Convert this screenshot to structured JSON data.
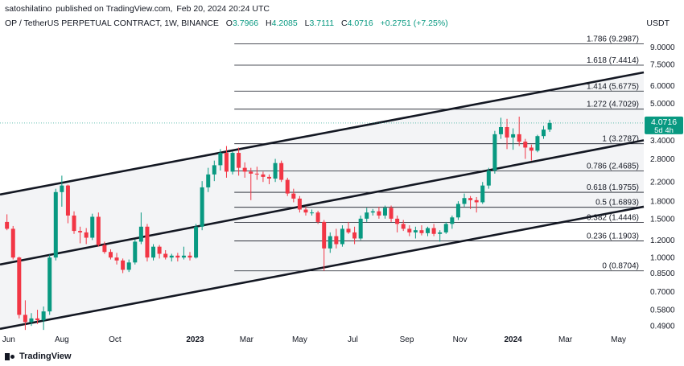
{
  "header": {
    "author": "satoshilatino",
    "published_text": "published on TradingView.com,",
    "date": "Feb 20, 2024 20:24 UTC",
    "symbol": "OP / TetherUS PERPETUAL CONTRACT, 1W, BINANCE",
    "open_label": "O",
    "open": "3.7966",
    "high_label": "H",
    "high": "4.2085",
    "low_label": "L",
    "low": "3.7111",
    "close_label": "C",
    "close": "4.0716",
    "change": "+0.2751 (+7.25%)",
    "unit": "USDT"
  },
  "logo": {
    "text": "TradingView"
  },
  "price_tag": {
    "price": "4.0716",
    "countdown": "5d 4h"
  },
  "colors": {
    "up": "#089981",
    "down": "#f23645",
    "channel": "#131722",
    "fib": "#131722",
    "channel_fill": "#f3f4f6",
    "tag": "#089981"
  },
  "chart_data": {
    "type": "candlestick",
    "y_scale": "log",
    "y_range": [
      0.44,
      10.5
    ],
    "y_ticks": [
      "9.0000",
      "7.5000",
      "6.0000",
      "5.0000",
      "4.0000",
      "3.4000",
      "2.8000",
      "2.2000",
      "1.8000",
      "1.5000",
      "1.2000",
      "1.0000",
      "0.8500",
      "0.7000",
      "0.5800",
      "0.4900"
    ],
    "x_range": [
      "2022-05-22",
      "2024-05-30"
    ],
    "x_ticks": [
      {
        "date": "2022-06-01",
        "label": "Jun"
      },
      {
        "date": "2022-08-01",
        "label": "Aug"
      },
      {
        "date": "2022-10-01",
        "label": "Oct"
      },
      {
        "date": "2023-01-01",
        "label": "2023"
      },
      {
        "date": "2023-03-01",
        "label": "Mar"
      },
      {
        "date": "2023-05-01",
        "label": "May"
      },
      {
        "date": "2023-07-01",
        "label": "Jul"
      },
      {
        "date": "2023-09-01",
        "label": "Sep"
      },
      {
        "date": "2023-11-01",
        "label": "Nov"
      },
      {
        "date": "2024-01-01",
        "label": "2024"
      },
      {
        "date": "2024-03-01",
        "label": "Mar"
      },
      {
        "date": "2024-05-01",
        "label": "May"
      }
    ],
    "fib_levels": [
      {
        "ratio": "1.786",
        "price": "9.2987",
        "value": 9.2987
      },
      {
        "ratio": "1.618",
        "price": "7.4414",
        "value": 7.4414
      },
      {
        "ratio": "1.414",
        "price": "5.6775",
        "value": 5.6775
      },
      {
        "ratio": "1.272",
        "price": "4.7029",
        "value": 4.7029
      },
      {
        "ratio": "1",
        "price": "3.2787",
        "value": 3.2787
      },
      {
        "ratio": "0.786",
        "price": "2.4685",
        "value": 2.4685
      },
      {
        "ratio": "0.618",
        "price": "1.9755",
        "value": 1.9755
      },
      {
        "ratio": "0.5",
        "price": "1.6893",
        "value": 1.6893
      },
      {
        "ratio": "0.382",
        "price": "1.4446",
        "value": 1.4446
      },
      {
        "ratio": "0.236",
        "price": "1.1903",
        "value": 1.1903
      },
      {
        "ratio": "0",
        "price": "0.8704",
        "value": 0.8704
      }
    ],
    "fib_start": "2023-02-15",
    "channel_lines": [
      {
        "name": "upper",
        "points": [
          [
            "2022-05-22",
            1.93
          ],
          [
            "2024-05-30",
            6.9
          ]
        ]
      },
      {
        "name": "middle",
        "points": [
          [
            "2022-05-22",
            0.93
          ],
          [
            "2024-05-30",
            3.4
          ]
        ]
      },
      {
        "name": "lower",
        "points": [
          [
            "2022-05-22",
            0.475
          ],
          [
            "2024-05-30",
            1.7
          ]
        ]
      }
    ],
    "candles": [
      {
        "t": "2022-05-30",
        "o": 1.45,
        "h": 1.57,
        "l": 1.33,
        "c": 1.35
      },
      {
        "t": "2022-06-06",
        "o": 1.35,
        "h": 1.39,
        "l": 0.98,
        "c": 1.0
      },
      {
        "t": "2022-06-13",
        "o": 1.0,
        "h": 1.01,
        "l": 0.53,
        "c": 0.55
      },
      {
        "t": "2022-06-20",
        "o": 0.55,
        "h": 0.64,
        "l": 0.47,
        "c": 0.51
      },
      {
        "t": "2022-06-27",
        "o": 0.51,
        "h": 0.56,
        "l": 0.49,
        "c": 0.53
      },
      {
        "t": "2022-07-04",
        "o": 0.53,
        "h": 0.58,
        "l": 0.5,
        "c": 0.52
      },
      {
        "t": "2022-07-11",
        "o": 0.52,
        "h": 0.6,
        "l": 0.47,
        "c": 0.57
      },
      {
        "t": "2022-07-18",
        "o": 0.57,
        "h": 1.03,
        "l": 0.55,
        "c": 1.0
      },
      {
        "t": "2022-07-25",
        "o": 1.0,
        "h": 2.05,
        "l": 0.97,
        "c": 1.98
      },
      {
        "t": "2022-08-01",
        "o": 1.98,
        "h": 2.35,
        "l": 1.7,
        "c": 2.12
      },
      {
        "t": "2022-08-08",
        "o": 2.12,
        "h": 2.14,
        "l": 1.43,
        "c": 1.55
      },
      {
        "t": "2022-08-15",
        "o": 1.55,
        "h": 1.62,
        "l": 1.28,
        "c": 1.32
      },
      {
        "t": "2022-08-22",
        "o": 1.32,
        "h": 1.38,
        "l": 1.16,
        "c": 1.3
      },
      {
        "t": "2022-08-29",
        "o": 1.3,
        "h": 1.36,
        "l": 1.15,
        "c": 1.23
      },
      {
        "t": "2022-09-05",
        "o": 1.23,
        "h": 1.58,
        "l": 1.2,
        "c": 1.53
      },
      {
        "t": "2022-09-12",
        "o": 1.53,
        "h": 1.6,
        "l": 1.12,
        "c": 1.14
      },
      {
        "t": "2022-09-19",
        "o": 1.14,
        "h": 1.18,
        "l": 1.04,
        "c": 1.06
      },
      {
        "t": "2022-09-26",
        "o": 1.06,
        "h": 1.09,
        "l": 0.98,
        "c": 1.0
      },
      {
        "t": "2022-10-03",
        "o": 1.0,
        "h": 1.05,
        "l": 0.93,
        "c": 0.97
      },
      {
        "t": "2022-10-10",
        "o": 0.97,
        "h": 0.99,
        "l": 0.85,
        "c": 0.88
      },
      {
        "t": "2022-10-17",
        "o": 0.88,
        "h": 0.98,
        "l": 0.86,
        "c": 0.95
      },
      {
        "t": "2022-10-24",
        "o": 0.95,
        "h": 1.21,
        "l": 0.93,
        "c": 1.18
      },
      {
        "t": "2022-10-31",
        "o": 1.18,
        "h": 1.6,
        "l": 1.15,
        "c": 1.38
      },
      {
        "t": "2022-11-07",
        "o": 1.38,
        "h": 1.42,
        "l": 0.96,
        "c": 1.0
      },
      {
        "t": "2022-11-14",
        "o": 1.0,
        "h": 1.15,
        "l": 0.97,
        "c": 1.12
      },
      {
        "t": "2022-11-21",
        "o": 1.12,
        "h": 1.14,
        "l": 0.99,
        "c": 1.04
      },
      {
        "t": "2022-11-28",
        "o": 1.04,
        "h": 1.08,
        "l": 0.98,
        "c": 1.0
      },
      {
        "t": "2022-12-05",
        "o": 1.0,
        "h": 1.04,
        "l": 0.96,
        "c": 1.02
      },
      {
        "t": "2022-12-12",
        "o": 1.02,
        "h": 1.05,
        "l": 0.96,
        "c": 1.0
      },
      {
        "t": "2022-12-19",
        "o": 1.0,
        "h": 1.12,
        "l": 0.98,
        "c": 1.02
      },
      {
        "t": "2022-12-26",
        "o": 1.02,
        "h": 1.06,
        "l": 0.97,
        "c": 1.0
      },
      {
        "t": "2023-01-02",
        "o": 1.0,
        "h": 1.42,
        "l": 0.99,
        "c": 1.38
      },
      {
        "t": "2023-01-09",
        "o": 1.38,
        "h": 2.22,
        "l": 1.33,
        "c": 2.08
      },
      {
        "t": "2023-01-16",
        "o": 2.08,
        "h": 2.55,
        "l": 1.98,
        "c": 2.38
      },
      {
        "t": "2023-01-23",
        "o": 2.38,
        "h": 2.75,
        "l": 2.22,
        "c": 2.62
      },
      {
        "t": "2023-01-30",
        "o": 2.62,
        "h": 3.1,
        "l": 2.48,
        "c": 2.98
      },
      {
        "t": "2023-02-06",
        "o": 2.98,
        "h": 3.2,
        "l": 2.3,
        "c": 2.45
      },
      {
        "t": "2023-02-13",
        "o": 2.45,
        "h": 3.02,
        "l": 2.38,
        "c": 2.98
      },
      {
        "t": "2023-02-20",
        "o": 2.98,
        "h": 3.15,
        "l": 2.35,
        "c": 2.55
      },
      {
        "t": "2023-02-27",
        "o": 2.55,
        "h": 2.7,
        "l": 2.3,
        "c": 2.45
      },
      {
        "t": "2023-03-06",
        "o": 2.45,
        "h": 2.55,
        "l": 1.82,
        "c": 2.4
      },
      {
        "t": "2023-03-13",
        "o": 2.4,
        "h": 2.58,
        "l": 2.25,
        "c": 2.38
      },
      {
        "t": "2023-03-20",
        "o": 2.38,
        "h": 2.45,
        "l": 2.2,
        "c": 2.32
      },
      {
        "t": "2023-03-27",
        "o": 2.32,
        "h": 2.38,
        "l": 2.15,
        "c": 2.28
      },
      {
        "t": "2023-04-03",
        "o": 2.28,
        "h": 2.8,
        "l": 2.2,
        "c": 2.68
      },
      {
        "t": "2023-04-10",
        "o": 2.68,
        "h": 2.75,
        "l": 2.2,
        "c": 2.25
      },
      {
        "t": "2023-04-17",
        "o": 2.25,
        "h": 2.3,
        "l": 1.9,
        "c": 1.95
      },
      {
        "t": "2023-04-24",
        "o": 1.95,
        "h": 2.05,
        "l": 1.78,
        "c": 1.85
      },
      {
        "t": "2023-05-01",
        "o": 1.85,
        "h": 1.9,
        "l": 1.6,
        "c": 1.65
      },
      {
        "t": "2023-05-08",
        "o": 1.65,
        "h": 1.7,
        "l": 1.55,
        "c": 1.6
      },
      {
        "t": "2023-05-15",
        "o": 1.6,
        "h": 1.65,
        "l": 1.55,
        "c": 1.6
      },
      {
        "t": "2023-05-22",
        "o": 1.6,
        "h": 1.63,
        "l": 1.42,
        "c": 1.45
      },
      {
        "t": "2023-05-29",
        "o": 1.45,
        "h": 1.48,
        "l": 0.87,
        "c": 1.1
      },
      {
        "t": "2023-06-05",
        "o": 1.1,
        "h": 1.3,
        "l": 1.05,
        "c": 1.25
      },
      {
        "t": "2023-06-12",
        "o": 1.25,
        "h": 1.35,
        "l": 1.1,
        "c": 1.15
      },
      {
        "t": "2023-06-19",
        "o": 1.15,
        "h": 1.4,
        "l": 1.12,
        "c": 1.35
      },
      {
        "t": "2023-06-26",
        "o": 1.35,
        "h": 1.45,
        "l": 1.28,
        "c": 1.3
      },
      {
        "t": "2023-07-03",
        "o": 1.3,
        "h": 1.38,
        "l": 1.15,
        "c": 1.22
      },
      {
        "t": "2023-07-10",
        "o": 1.22,
        "h": 1.55,
        "l": 1.2,
        "c": 1.5
      },
      {
        "t": "2023-07-17",
        "o": 1.5,
        "h": 1.68,
        "l": 1.45,
        "c": 1.6
      },
      {
        "t": "2023-07-24",
        "o": 1.6,
        "h": 1.66,
        "l": 1.55,
        "c": 1.62
      },
      {
        "t": "2023-07-31",
        "o": 1.62,
        "h": 1.7,
        "l": 1.5,
        "c": 1.55
      },
      {
        "t": "2023-08-07",
        "o": 1.55,
        "h": 1.72,
        "l": 1.5,
        "c": 1.68
      },
      {
        "t": "2023-08-14",
        "o": 1.68,
        "h": 1.72,
        "l": 1.45,
        "c": 1.5
      },
      {
        "t": "2023-08-21",
        "o": 1.5,
        "h": 1.55,
        "l": 1.3,
        "c": 1.42
      },
      {
        "t": "2023-08-28",
        "o": 1.42,
        "h": 1.48,
        "l": 1.32,
        "c": 1.35
      },
      {
        "t": "2023-09-04",
        "o": 1.35,
        "h": 1.4,
        "l": 1.25,
        "c": 1.3
      },
      {
        "t": "2023-09-11",
        "o": 1.3,
        "h": 1.38,
        "l": 1.22,
        "c": 1.33
      },
      {
        "t": "2023-09-18",
        "o": 1.33,
        "h": 1.4,
        "l": 1.26,
        "c": 1.29
      },
      {
        "t": "2023-09-25",
        "o": 1.29,
        "h": 1.38,
        "l": 1.25,
        "c": 1.36
      },
      {
        "t": "2023-10-02",
        "o": 1.36,
        "h": 1.42,
        "l": 1.25,
        "c": 1.28
      },
      {
        "t": "2023-10-09",
        "o": 1.28,
        "h": 1.33,
        "l": 1.18,
        "c": 1.3
      },
      {
        "t": "2023-10-16",
        "o": 1.3,
        "h": 1.45,
        "l": 1.28,
        "c": 1.42
      },
      {
        "t": "2023-10-23",
        "o": 1.42,
        "h": 1.55,
        "l": 1.35,
        "c": 1.52
      },
      {
        "t": "2023-10-30",
        "o": 1.52,
        "h": 1.8,
        "l": 1.48,
        "c": 1.75
      },
      {
        "t": "2023-11-06",
        "o": 1.75,
        "h": 1.95,
        "l": 1.7,
        "c": 1.86
      },
      {
        "t": "2023-11-13",
        "o": 1.86,
        "h": 1.9,
        "l": 1.66,
        "c": 1.82
      },
      {
        "t": "2023-11-20",
        "o": 1.82,
        "h": 1.88,
        "l": 1.6,
        "c": 1.78
      },
      {
        "t": "2023-11-27",
        "o": 1.78,
        "h": 2.2,
        "l": 1.75,
        "c": 2.12
      },
      {
        "t": "2023-12-04",
        "o": 2.12,
        "h": 2.55,
        "l": 2.05,
        "c": 2.48
      },
      {
        "t": "2023-12-11",
        "o": 2.48,
        "h": 3.75,
        "l": 2.4,
        "c": 3.62
      },
      {
        "t": "2023-12-18",
        "o": 3.62,
        "h": 4.3,
        "l": 3.45,
        "c": 3.9
      },
      {
        "t": "2023-12-25",
        "o": 3.9,
        "h": 4.25,
        "l": 3.1,
        "c": 3.5
      },
      {
        "t": "2024-01-01",
        "o": 3.5,
        "h": 3.85,
        "l": 3.08,
        "c": 3.62
      },
      {
        "t": "2024-01-08",
        "o": 3.62,
        "h": 4.35,
        "l": 3.2,
        "c": 3.35
      },
      {
        "t": "2024-01-15",
        "o": 3.35,
        "h": 3.45,
        "l": 2.8,
        "c": 3.15
      },
      {
        "t": "2024-01-22",
        "o": 3.15,
        "h": 3.25,
        "l": 2.75,
        "c": 3.05
      },
      {
        "t": "2024-01-29",
        "o": 3.05,
        "h": 3.6,
        "l": 3.0,
        "c": 3.55
      },
      {
        "t": "2024-02-05",
        "o": 3.55,
        "h": 3.95,
        "l": 3.45,
        "c": 3.8
      },
      {
        "t": "2024-02-12",
        "o": 3.8,
        "h": 4.21,
        "l": 3.71,
        "c": 4.07
      }
    ]
  }
}
